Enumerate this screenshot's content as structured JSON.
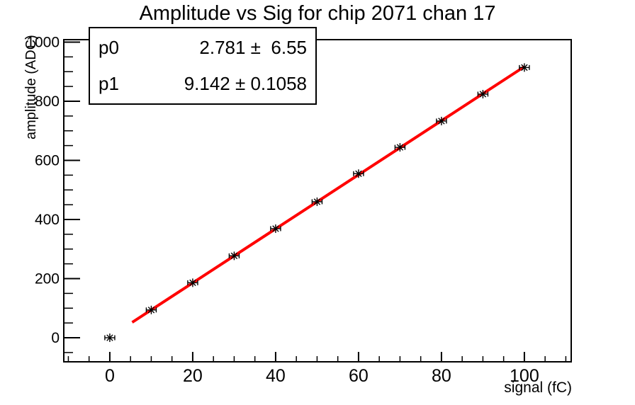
{
  "stats_box": {
    "rows": [
      {
        "param": "p0",
        "value_text": "2.781 ±  6.55"
      },
      {
        "param": "p1",
        "value_text": "9.142 ± 0.1058"
      }
    ]
  },
  "chart_data": {
    "type": "scatter",
    "title": "Amplitude vs Sig for chip 2071 chan 17",
    "xlabel": "signal (fC)",
    "ylabel": "amplitude (ADC)",
    "x": [
      0,
      10,
      20,
      30,
      40,
      50,
      60,
      70,
      80,
      90,
      100
    ],
    "y": [
      0,
      94,
      186,
      277,
      369,
      460,
      555,
      644,
      733,
      824,
      914
    ],
    "x_error": 1.2,
    "marker": "asterisk",
    "marker_color": "#000000",
    "fit": {
      "type": "linear",
      "p0": 2.781,
      "p0_err": 6.55,
      "p1": 9.142,
      "p1_err": 0.1058,
      "x_range": [
        5.4,
        100
      ],
      "color": "#ff0000",
      "line_width": 4
    },
    "xlim": [
      -11.1,
      111.3
    ],
    "ylim": [
      -81.4,
      1008.3
    ],
    "x_ticks": [
      0,
      20,
      40,
      60,
      80,
      100
    ],
    "y_ticks": [
      0,
      200,
      400,
      600,
      800,
      1000
    ],
    "x_minor_step": 5,
    "y_minor_step": 50,
    "grid": false,
    "legend": "none",
    "axis_color": "#000000",
    "background": "#ffffff"
  }
}
